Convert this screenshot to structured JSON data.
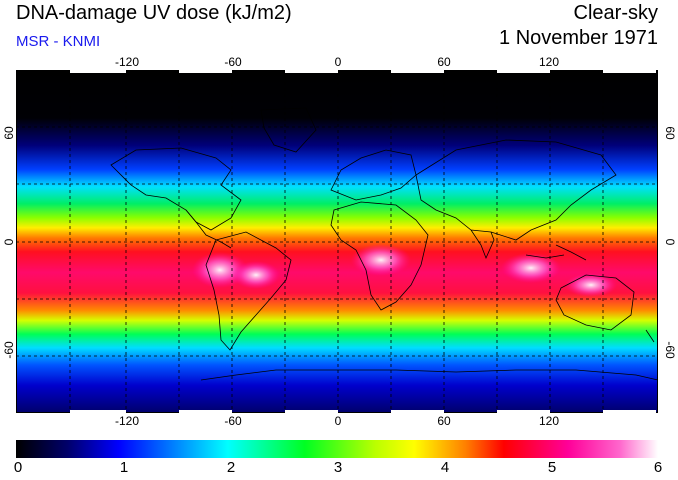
{
  "header": {
    "title": "DNA-damage UV dose (kJ/m2)",
    "source": "MSR - KNMI",
    "sky_condition": "Clear-sky",
    "date": "1 November 1971"
  },
  "map": {
    "projection": "equirectangular",
    "lon_range": [
      -180,
      180
    ],
    "lat_range": [
      -90,
      90
    ],
    "lon_ticks": [
      "-120",
      "-60",
      "0",
      "60",
      "120"
    ],
    "lat_ticks": [
      "60",
      "0",
      "-60"
    ],
    "grid": "dashed, every 30 degrees",
    "coastlines": "black",
    "field": "clear-sky daily DNA-damage UV dose, peaking near the equator (about 4-5.5 kJ/m2), with maxima near 6 over the Andes, Africa and Indonesia; near zero poleward of ~60N"
  },
  "colorbar": {
    "labels": [
      "0",
      "1",
      "2",
      "3",
      "4",
      "5",
      "6"
    ],
    "min": 0,
    "max": 6,
    "unit": "kJ/m2",
    "colors": [
      "#000000",
      "#00008b",
      "#0000ff",
      "#00ffff",
      "#00ff00",
      "#ffff00",
      "#ff8000",
      "#ff0000",
      "#ff0099",
      "#ff66cc",
      "#ffffff"
    ]
  }
}
